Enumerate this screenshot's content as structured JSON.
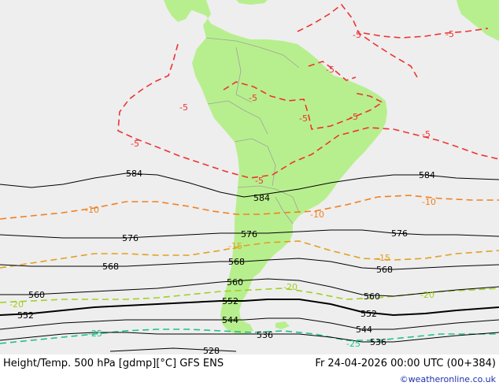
{
  "map": {
    "ocean_color": "#eeeeee",
    "land_color": "#b8ef8e",
    "border_color": "#a0a0a0",
    "height_contours": [
      {
        "value": "584",
        "color": "#000000"
      },
      {
        "value": "576",
        "color": "#000000"
      },
      {
        "value": "568",
        "color": "#000000"
      },
      {
        "value": "560",
        "color": "#000000"
      },
      {
        "value": "552",
        "color": "#000000"
      },
      {
        "value": "544",
        "color": "#000000"
      },
      {
        "value": "536",
        "color": "#000000"
      },
      {
        "value": "528",
        "color": "#000000"
      }
    ],
    "temp_contours": [
      {
        "value": "-5",
        "color": "#ee3333"
      },
      {
        "value": "-10",
        "color": "#f08020"
      },
      {
        "value": "-15",
        "color": "#e0a020"
      },
      {
        "value": "-20",
        "color": "#a0d020"
      },
      {
        "value": "-25",
        "color": "#20c090"
      }
    ]
  },
  "footer": {
    "title": "Height/Temp. 500 hPa [gdmp][°C] GFS ENS",
    "datetime": "Fr 24-04-2026 00:00 UTC (00+384)",
    "credit": "©weatheronline.co.uk"
  }
}
